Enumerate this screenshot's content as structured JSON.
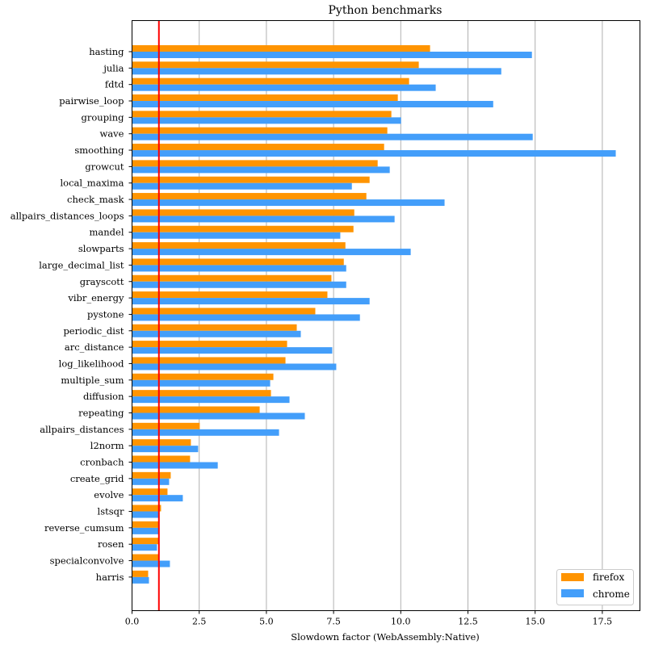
{
  "chart_data": {
    "type": "bar",
    "orientation": "horizontal",
    "title": "Python benchmarks",
    "xlabel": "Slowdown factor (WebAssembly:Native)",
    "ylabel": "",
    "xlim": [
      0,
      18.9
    ],
    "xticks": [
      "0.0",
      "2.5",
      "5.0",
      "7.5",
      "10.0",
      "12.5",
      "15.0",
      "17.5"
    ],
    "xtick_values": [
      0,
      2.5,
      5,
      7.5,
      10,
      12.5,
      15,
      17.5
    ],
    "grid": "vertical",
    "legend_position": "bottom-right",
    "reference_line": {
      "x": 1.0,
      "color": "#ff0000"
    },
    "categories": [
      "hasting",
      "julia",
      "fdtd",
      "pairwise_loop",
      "grouping",
      "wave",
      "smoothing",
      "growcut",
      "local_maxima",
      "check_mask",
      "allpairs_distances_loops",
      "mandel",
      "slowparts",
      "large_decimal_list",
      "grayscott",
      "vibr_energy",
      "pystone",
      "periodic_dist",
      "arc_distance",
      "log_likelihood",
      "multiple_sum",
      "diffusion",
      "repeating",
      "allpairs_distances",
      "l2norm",
      "cronbach",
      "create_grid",
      "evolve",
      "lstsqr",
      "reverse_cumsum",
      "rosen",
      "specialconvolve",
      "harris"
    ],
    "series": [
      {
        "name": "firefox",
        "color": "#ff9400",
        "values": [
          11.09,
          10.67,
          10.31,
          9.89,
          9.65,
          9.5,
          9.38,
          9.14,
          8.84,
          8.72,
          8.27,
          8.24,
          7.94,
          7.88,
          7.42,
          7.27,
          6.82,
          6.13,
          5.77,
          5.71,
          5.26,
          5.17,
          4.75,
          2.52,
          2.19,
          2.16,
          1.44,
          1.32,
          1.08,
          1.02,
          0.99,
          0.99,
          0.6
        ]
      },
      {
        "name": "chrome",
        "color": "#439efa",
        "values": [
          14.88,
          13.74,
          11.3,
          13.44,
          10.01,
          14.91,
          18.0,
          9.59,
          8.18,
          11.63,
          9.77,
          7.75,
          10.37,
          7.97,
          7.97,
          8.84,
          8.48,
          6.28,
          7.45,
          7.6,
          5.14,
          5.86,
          6.43,
          5.47,
          2.46,
          3.19,
          1.38,
          1.89,
          1.02,
          1.02,
          0.93,
          1.41,
          0.63
        ]
      }
    ]
  }
}
